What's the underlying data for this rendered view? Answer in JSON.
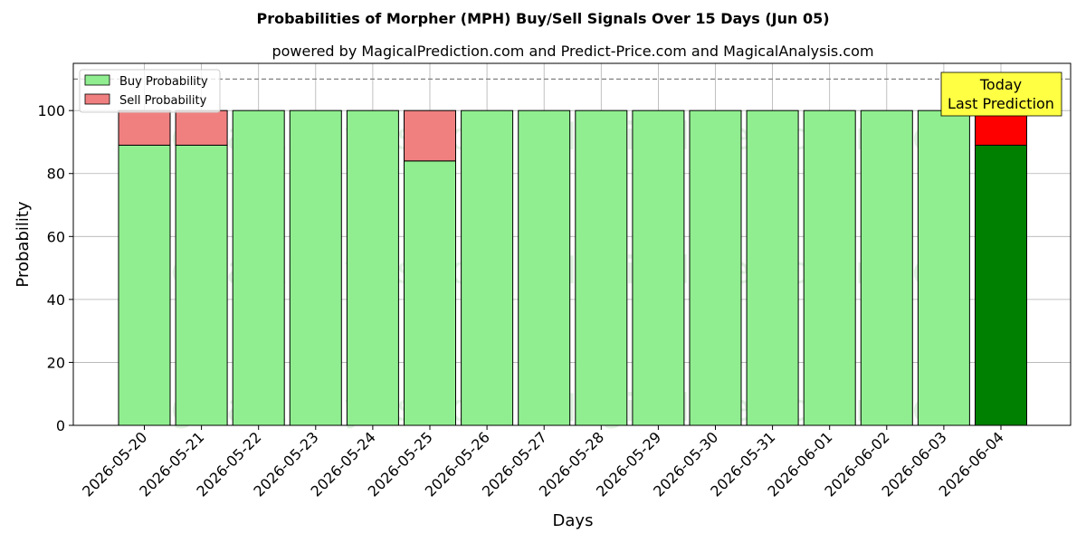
{
  "chart_data": {
    "type": "bar",
    "stacked": true,
    "title": "Probabilities of Morpher (MPH) Buy/Sell Signals Over 15 Days (Jun 05)",
    "subtitle": "powered by MagicalPrediction.com and Predict-Price.com and MagicalAnalysis.com",
    "xlabel": "Days",
    "ylabel": "Probability",
    "ylim": [
      0,
      115
    ],
    "yticks": [
      0,
      20,
      40,
      60,
      80,
      100
    ],
    "grid": true,
    "legend_position": "top-left",
    "reference_line": 110,
    "categories": [
      "2026-05-20",
      "2026-05-21",
      "2026-05-22",
      "2026-05-23",
      "2026-05-24",
      "2026-05-25",
      "2026-05-26",
      "2026-05-27",
      "2026-05-28",
      "2026-05-29",
      "2026-05-30",
      "2026-05-31",
      "2026-06-01",
      "2026-06-02",
      "2026-06-03",
      "2026-06-04"
    ],
    "series": [
      {
        "name": "Buy Probability",
        "color": "#90ee90",
        "highlight_color": "#008000",
        "values": [
          89,
          89,
          100,
          100,
          100,
          84,
          100,
          100,
          100,
          100,
          100,
          100,
          100,
          100,
          100,
          89
        ]
      },
      {
        "name": "Sell Probability",
        "color": "#f08080",
        "highlight_color": "#ff0000",
        "values": [
          11,
          11,
          0,
          0,
          0,
          16,
          0,
          0,
          0,
          0,
          0,
          0,
          0,
          0,
          0,
          11
        ]
      }
    ],
    "highlight_index": 15,
    "annotation": {
      "lines": [
        "Today",
        "Last Prediction"
      ],
      "color": "#ffff44"
    },
    "watermarks": [
      "MagicalAnalysis.com",
      "MagicalPrediction.com"
    ]
  }
}
